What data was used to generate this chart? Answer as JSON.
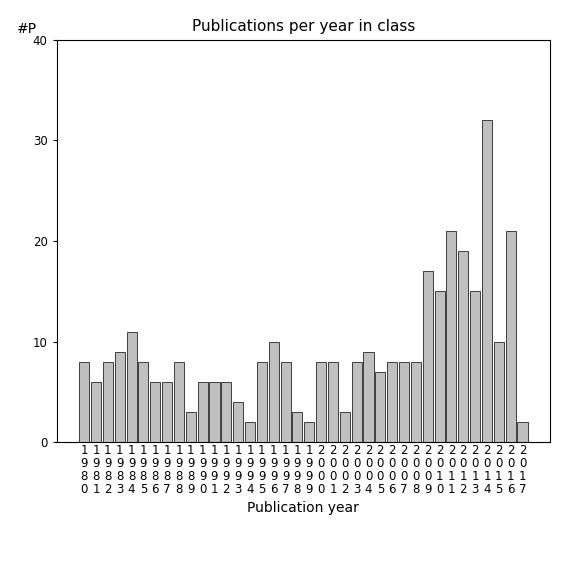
{
  "title": "Publications per year in class",
  "xlabel": "Publication year",
  "ylabel_label": "#P",
  "years": [
    1980,
    1981,
    1982,
    1983,
    1984,
    1985,
    1986,
    1987,
    1988,
    1989,
    1990,
    1991,
    1992,
    1993,
    1994,
    1995,
    1996,
    1997,
    1998,
    1999,
    2000,
    2001,
    2002,
    2003,
    2004,
    2005,
    2006,
    2007,
    2008,
    2009,
    2010,
    2011,
    2012,
    2013,
    2014,
    2015,
    2016,
    2017
  ],
  "values": [
    8,
    6,
    8,
    9,
    11,
    8,
    6,
    6,
    8,
    3,
    6,
    6,
    6,
    4,
    2,
    8,
    10,
    8,
    3,
    2,
    8,
    8,
    3,
    8,
    9,
    7,
    8,
    8,
    8,
    17,
    15,
    21,
    19,
    15,
    32,
    10,
    21,
    2
  ],
  "ylim": [
    0,
    40
  ],
  "yticks": [
    0,
    10,
    20,
    30,
    40
  ],
  "bar_color": "#c0c0c0",
  "bar_edge_color": "#000000",
  "bar_edge_width": 0.5,
  "background_color": "#ffffff",
  "title_fontsize": 11,
  "axis_label_fontsize": 10,
  "tick_fontsize": 8.5,
  "ylabel_fontsize": 10
}
